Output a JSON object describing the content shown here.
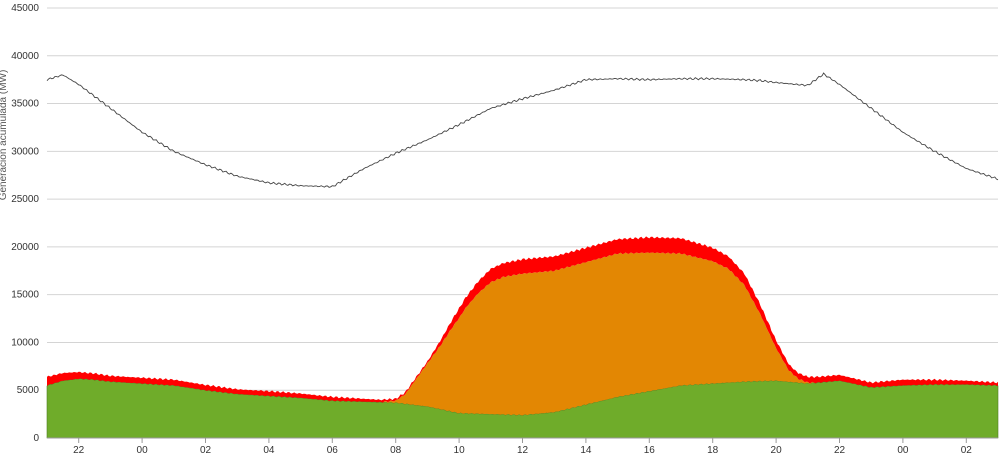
{
  "chart_data": {
    "type": "area",
    "title": "",
    "xlabel": "",
    "ylabel": "Generación acumulada (MW)",
    "ylim": [
      0,
      45000
    ],
    "grid": true,
    "legend": "none",
    "x_range_hours": [
      21.0,
      51.0
    ],
    "x_ticks": [
      {
        "x": 22,
        "label": "22"
      },
      {
        "x": 24,
        "label": "00"
      },
      {
        "x": 26,
        "label": "02"
      },
      {
        "x": 28,
        "label": "04"
      },
      {
        "x": 30,
        "label": "06"
      },
      {
        "x": 32,
        "label": "08"
      },
      {
        "x": 34,
        "label": "10"
      },
      {
        "x": 36,
        "label": "12"
      },
      {
        "x": 38,
        "label": "14"
      },
      {
        "x": 40,
        "label": "16"
      },
      {
        "x": 42,
        "label": "18"
      },
      {
        "x": 44,
        "label": "20"
      },
      {
        "x": 46,
        "label": "22"
      },
      {
        "x": 48,
        "label": "00"
      },
      {
        "x": 50,
        "label": "02"
      }
    ],
    "y_ticks": [
      0,
      5000,
      10000,
      15000,
      20000,
      25000,
      30000,
      35000,
      40000,
      45000
    ],
    "stack_series": [
      {
        "color": "#6fac2a",
        "x": [
          21.0,
          21.5,
          22.0,
          22.5,
          23.0,
          24.0,
          25.0,
          26.0,
          27.0,
          28.0,
          29.0,
          30.0,
          31.0,
          32.0,
          33.0,
          34.0,
          35.0,
          36.0,
          37.0,
          38.0,
          39.0,
          40.0,
          41.0,
          42.0,
          43.0,
          44.0,
          45.0,
          46.0,
          47.0,
          48.0,
          49.0,
          50.0,
          51.0
        ],
        "values": [
          5500,
          6000,
          6200,
          6100,
          5900,
          5700,
          5500,
          5000,
          4600,
          4400,
          4200,
          3900,
          3800,
          3700,
          3300,
          2600,
          2500,
          2400,
          2700,
          3500,
          4300,
          4900,
          5500,
          5700,
          5900,
          6000,
          5700,
          6000,
          5300,
          5500,
          5600,
          5600,
          5500
        ]
      },
      {
        "color": "#e38703",
        "x": [
          21.0,
          21.5,
          22.0,
          22.5,
          23.0,
          24.0,
          25.0,
          26.0,
          27.0,
          28.0,
          29.0,
          30.0,
          31.0,
          31.5,
          32.0,
          32.3,
          32.6,
          33.0,
          33.4,
          33.8,
          34.2,
          34.6,
          35.0,
          35.4,
          36.0,
          37.0,
          38.0,
          39.0,
          40.0,
          41.0,
          42.0,
          42.5,
          43.0,
          43.5,
          44.0,
          44.4,
          44.7,
          45.0,
          45.3,
          46.0,
          47.0,
          48.0,
          49.0,
          50.0,
          51.0
        ],
        "values": [
          0,
          0,
          0,
          0,
          0,
          0,
          0,
          0,
          0,
          0,
          0,
          0,
          0,
          0,
          200,
          1000,
          2500,
          4500,
          6600,
          8900,
          11000,
          12600,
          13800,
          14400,
          14800,
          14800,
          14900,
          15000,
          14500,
          13800,
          12800,
          11900,
          10100,
          7000,
          3400,
          1200,
          400,
          100,
          0,
          0,
          0,
          0,
          0,
          0,
          0
        ]
      },
      {
        "color": "#ff0000",
        "x": [
          21.0,
          22.0,
          23.0,
          24.0,
          25.0,
          26.0,
          27.0,
          28.0,
          29.0,
          30.0,
          31.0,
          32.0,
          33.0,
          34.0,
          35.0,
          36.0,
          37.0,
          38.0,
          39.0,
          40.0,
          41.0,
          42.0,
          43.0,
          44.0,
          44.5,
          45.0,
          46.0,
          47.0,
          48.0,
          49.0,
          50.0,
          51.0
        ],
        "values": [
          900,
          700,
          600,
          600,
          600,
          550,
          500,
          500,
          450,
          400,
          300,
          200,
          200,
          1000,
          1400,
          1500,
          1500,
          1500,
          1500,
          1600,
          1600,
          1400,
          1200,
          800,
          600,
          600,
          600,
          500,
          600,
          500,
          400,
          300
        ]
      }
    ],
    "line_series": {
      "color": "#444444",
      "x": [
        21.0,
        21.5,
        22.0,
        23.0,
        24.0,
        25.0,
        26.0,
        27.0,
        28.0,
        29.0,
        30.0,
        31.0,
        32.0,
        33.0,
        34.0,
        35.0,
        36.0,
        37.0,
        38.0,
        39.0,
        40.0,
        41.0,
        42.0,
        43.0,
        43.5,
        44.0,
        45.0,
        45.5,
        46.0,
        47.0,
        48.0,
        49.0,
        50.0,
        51.0
      ],
      "values": [
        37500,
        38000,
        37000,
        34500,
        32000,
        30000,
        28600,
        27400,
        26700,
        26400,
        26300,
        28200,
        29800,
        31200,
        32800,
        34500,
        35500,
        36400,
        37500,
        37600,
        37500,
        37600,
        37600,
        37500,
        37400,
        37200,
        36900,
        38100,
        37000,
        34500,
        32000,
        30000,
        28200,
        27100
      ]
    }
  }
}
